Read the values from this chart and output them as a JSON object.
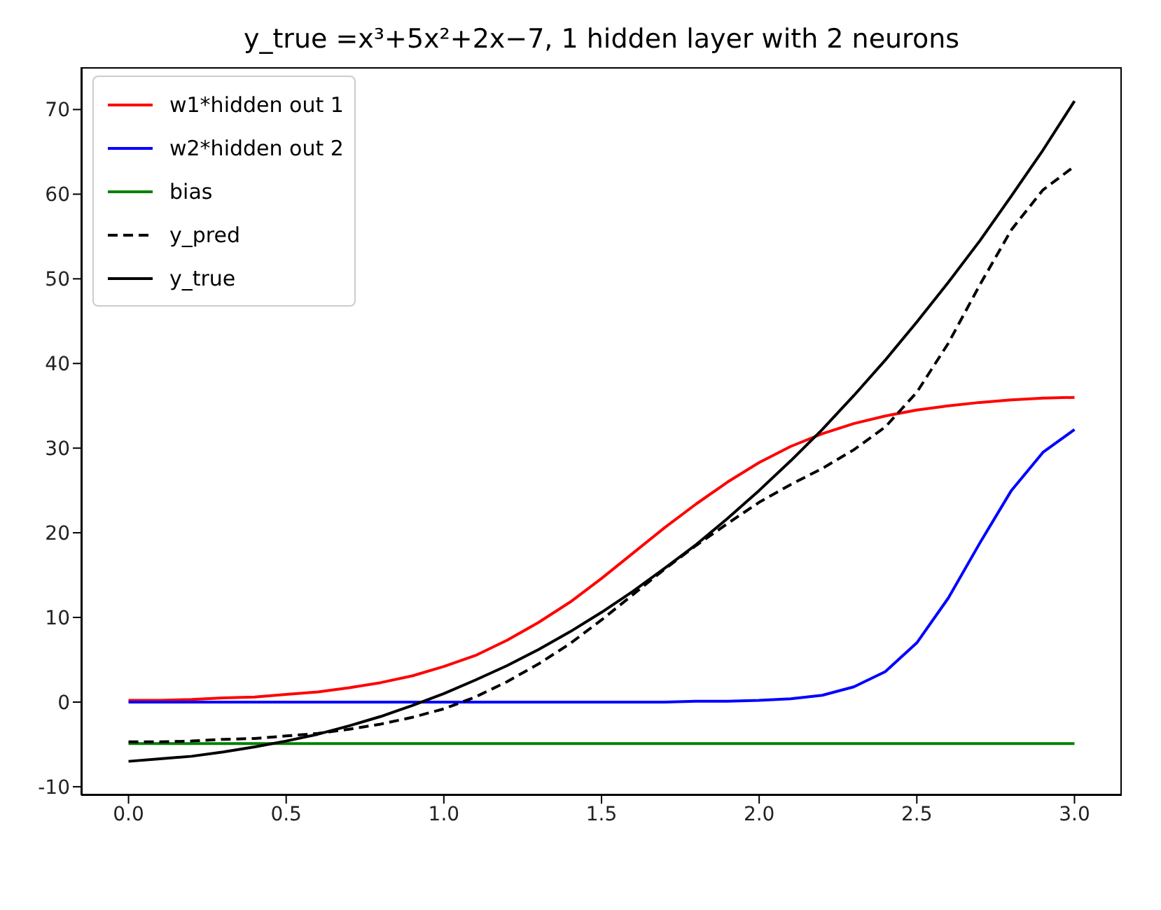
{
  "chart_data": {
    "type": "line",
    "title": "y_true =x³+5x²+2x−7, 1 hidden layer with 2 neurons",
    "x": [
      0,
      0.1,
      0.2,
      0.3,
      0.4,
      0.5,
      0.6,
      0.7,
      0.8,
      0.9,
      1.0,
      1.1,
      1.2,
      1.3,
      1.4,
      1.5,
      1.6,
      1.7,
      1.8,
      1.9,
      2.0,
      2.1,
      2.2,
      2.3,
      2.4,
      2.5,
      2.6,
      2.7,
      2.8,
      2.9,
      3.0
    ],
    "series": [
      {
        "name": "w1*hidden out 1",
        "color": "#ff0000",
        "values": [
          0.2,
          0.2,
          0.3,
          0.5,
          0.6,
          0.9,
          1.2,
          1.7,
          2.3,
          3.1,
          4.2,
          5.5,
          7.3,
          9.4,
          11.8,
          14.6,
          17.6,
          20.6,
          23.4,
          26.0,
          28.3,
          30.2,
          31.7,
          32.9,
          33.8,
          34.5,
          35.0,
          35.4,
          35.7,
          35.9,
          36.0
        ]
      },
      {
        "name": "w2*hidden out 2",
        "color": "#0000ff",
        "values": [
          0,
          0,
          0,
          0,
          0,
          0,
          0,
          0,
          0,
          0,
          0,
          0,
          0,
          0,
          0,
          0,
          0,
          0,
          0.1,
          0.1,
          0.2,
          0.4,
          0.8,
          1.8,
          3.6,
          7.0,
          12.3,
          18.8,
          25.0,
          29.5,
          32.2
        ]
      },
      {
        "name": "bias",
        "color": "#008000",
        "values": [
          -4.9,
          -4.9,
          -4.9,
          -4.9,
          -4.9,
          -4.9,
          -4.9,
          -4.9,
          -4.9,
          -4.9,
          -4.9,
          -4.9,
          -4.9,
          -4.9,
          -4.9,
          -4.9,
          -4.9,
          -4.9,
          -4.9,
          -4.9,
          -4.9,
          -4.9,
          -4.9,
          -4.9,
          -4.9,
          -4.9,
          -4.9,
          -4.9,
          -4.9,
          -4.9,
          -4.9
        ]
      },
      {
        "name": "y_pred",
        "color": "#000000",
        "line_style": "dashed",
        "values": [
          -4.7,
          -4.7,
          -4.6,
          -4.4,
          -4.3,
          -4.0,
          -3.7,
          -3.2,
          -2.6,
          -1.8,
          -0.8,
          0.6,
          2.4,
          4.5,
          6.9,
          9.7,
          12.7,
          15.7,
          18.5,
          21.1,
          23.6,
          25.7,
          27.6,
          29.8,
          32.5,
          36.6,
          42.4,
          49.3,
          55.8,
          60.5,
          63.3
        ]
      },
      {
        "name": "y_true",
        "color": "#000000",
        "line_style": "solid",
        "values": [
          -7.0,
          -6.7,
          -6.4,
          -5.9,
          -5.3,
          -4.6,
          -3.8,
          -2.8,
          -1.7,
          -0.4,
          1.0,
          2.6,
          4.3,
          6.2,
          8.3,
          10.6,
          13.1,
          15.8,
          18.6,
          21.7,
          25.0,
          28.5,
          32.2,
          36.2,
          40.4,
          44.9,
          49.6,
          54.5,
          59.8,
          65.2,
          71.0
        ]
      }
    ],
    "xlim": [
      -0.15,
      3.15
    ],
    "xticks": [
      {
        "value": 0,
        "label": "0.0"
      },
      {
        "value": 0.5,
        "label": "0.5"
      },
      {
        "value": 1,
        "label": "1.0"
      },
      {
        "value": 1.5,
        "label": "1.5"
      },
      {
        "value": 2,
        "label": "2.0"
      },
      {
        "value": 2.5,
        "label": "2.5"
      },
      {
        "value": 3,
        "label": "3.0"
      }
    ],
    "ylim": [
      -11,
      75
    ],
    "yticks": [
      -10,
      0,
      10,
      20,
      30,
      40,
      50,
      60,
      70
    ],
    "grid": false,
    "legend": "top left",
    "marker": "none"
  }
}
